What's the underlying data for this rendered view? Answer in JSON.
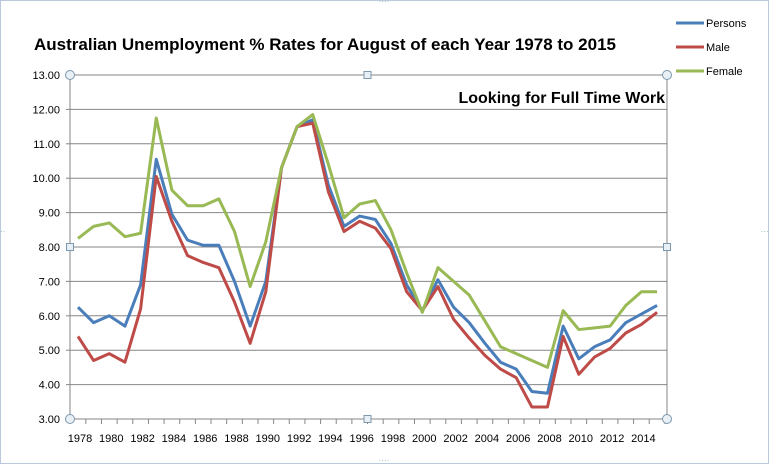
{
  "chart_data": {
    "type": "line",
    "title": "Australian Unemployment % Rates for August of each Year 1978 to 2015",
    "annotation": "Looking for Full Time Work",
    "xlabel": "",
    "ylabel": "",
    "ylim": [
      3,
      13
    ],
    "yticks": [
      "3.00",
      "4.00",
      "5.00",
      "6.00",
      "7.00",
      "8.00",
      "9.00",
      "10.00",
      "11.00",
      "12.00",
      "13.00"
    ],
    "xticks": [
      "1978",
      "1980",
      "1982",
      "1984",
      "1986",
      "1988",
      "1990",
      "1992",
      "1994",
      "1996",
      "1998",
      "2000",
      "2002",
      "2004",
      "2006",
      "2008",
      "2010",
      "2012",
      "2014"
    ],
    "x": [
      1978,
      1979,
      1980,
      1981,
      1982,
      1983,
      1984,
      1985,
      1986,
      1987,
      1988,
      1989,
      1990,
      1991,
      1992,
      1993,
      1994,
      1995,
      1996,
      1997,
      1998,
      1999,
      2000,
      2001,
      2002,
      2003,
      2004,
      2005,
      2006,
      2007,
      2008,
      2009,
      2010,
      2011,
      2012,
      2013,
      2014,
      2015
    ],
    "grid": true,
    "legend_position": "top-right",
    "series": [
      {
        "name": "Persons",
        "color": "#4a7ebb",
        "values": [
          6.25,
          5.8,
          6.0,
          5.7,
          6.9,
          10.55,
          8.95,
          8.2,
          8.05,
          8.05,
          7.0,
          5.7,
          7.0,
          10.3,
          11.5,
          11.7,
          9.8,
          8.6,
          8.9,
          8.8,
          8.1,
          6.9,
          6.15,
          7.05,
          6.25,
          5.8,
          5.2,
          4.65,
          4.45,
          3.8,
          3.75,
          5.7,
          4.75,
          5.1,
          5.3,
          5.8,
          6.05,
          6.3
        ]
      },
      {
        "name": "Male",
        "color": "#be4b48",
        "values": [
          5.4,
          4.7,
          4.9,
          4.65,
          6.2,
          10.05,
          8.75,
          7.75,
          7.55,
          7.4,
          6.4,
          5.2,
          6.7,
          10.3,
          11.5,
          11.6,
          9.6,
          8.45,
          8.75,
          8.55,
          7.95,
          6.7,
          6.15,
          6.85,
          5.9,
          5.35,
          4.85,
          4.45,
          4.2,
          3.35,
          3.35,
          5.4,
          4.3,
          4.8,
          5.05,
          5.5,
          5.75,
          6.1
        ]
      },
      {
        "name": "Female",
        "color": "#98b954",
        "values": [
          8.25,
          8.6,
          8.7,
          8.3,
          8.4,
          11.75,
          9.65,
          9.2,
          9.2,
          9.4,
          8.45,
          6.85,
          8.15,
          10.3,
          11.5,
          11.85,
          10.4,
          8.85,
          9.25,
          9.35,
          8.5,
          7.25,
          6.1,
          7.4,
          7.0,
          6.6,
          5.85,
          5.1,
          4.9,
          4.7,
          4.5,
          6.15,
          5.6,
          5.65,
          5.7,
          6.3,
          6.7,
          6.7
        ]
      }
    ]
  }
}
